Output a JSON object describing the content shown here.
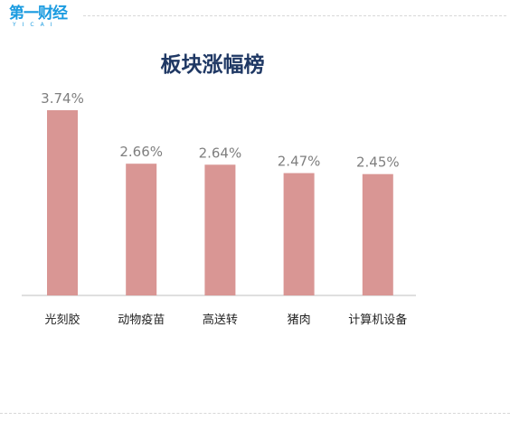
{
  "logo": {
    "name": "第一财经",
    "sub": "YICAI",
    "brand_color": "#1a9be0"
  },
  "chart_data": {
    "type": "bar",
    "title": "板块涨幅榜",
    "categories": [
      "光刻胶",
      "动物疫苗",
      "高送转",
      "猪肉",
      "计算机设备"
    ],
    "values": [
      3.74,
      2.66,
      2.64,
      2.47,
      2.45
    ],
    "data_labels": [
      "3.74%",
      "2.66%",
      "2.64%",
      "2.47%",
      "2.45%"
    ],
    "ylim": [
      0,
      3.74
    ],
    "grid": false,
    "legend": "none",
    "bar_color": "#d99694",
    "label_color": "#7f7f7f",
    "title_color": "#1f3864"
  }
}
